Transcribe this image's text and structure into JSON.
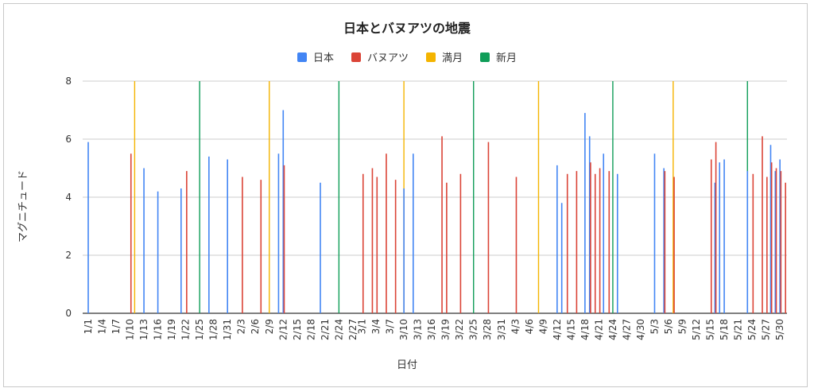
{
  "chart_data": {
    "type": "bar",
    "title": "日本とバヌアツの地震",
    "xlabel": "日付",
    "ylabel": "マグニチュード",
    "ylim": [
      0,
      8
    ],
    "yticks": [
      "0",
      "2",
      "4",
      "6",
      "8"
    ],
    "grid": true,
    "legend_position": "top",
    "xticks": [
      "1/1",
      "1/4",
      "1/7",
      "1/10",
      "1/13",
      "1/16",
      "1/19",
      "1/22",
      "1/25",
      "1/28",
      "1/31",
      "2/3",
      "2/6",
      "2/9",
      "2/12",
      "2/15",
      "2/18",
      "2/21",
      "2/24",
      "2/27",
      "3/1",
      "3/4",
      "3/7",
      "3/10",
      "3/13",
      "3/16",
      "3/19",
      "3/22",
      "3/25",
      "3/28",
      "3/31",
      "4/3",
      "4/6",
      "4/9",
      "4/12",
      "4/15",
      "4/18",
      "4/21",
      "4/24",
      "4/27",
      "4/30",
      "5/3",
      "5/6",
      "5/9",
      "5/12",
      "5/15",
      "5/18",
      "5/21",
      "5/24",
      "5/27",
      "5/30"
    ],
    "series": [
      {
        "name": "日本",
        "color": "#4285f4",
        "x": [
          "1/1",
          "1/13",
          "1/16",
          "1/21",
          "1/27",
          "1/31",
          "2/11",
          "2/12",
          "2/20",
          "3/10",
          "3/12",
          "4/12",
          "4/13",
          "4/18",
          "4/19",
          "4/22",
          "4/25",
          "5/3",
          "5/5",
          "5/16",
          "5/17",
          "5/18",
          "5/23",
          "5/28",
          "5/29",
          "5/30"
        ],
        "values": [
          5.9,
          5.0,
          4.2,
          4.3,
          5.4,
          5.3,
          5.5,
          7.0,
          4.5,
          4.3,
          5.5,
          5.1,
          3.8,
          6.9,
          6.1,
          5.5,
          4.8,
          5.5,
          5.0,
          4.5,
          5.2,
          5.3,
          4.9,
          5.8,
          4.9,
          5.3
        ]
      },
      {
        "name": "バヌアツ",
        "color": "#db4437",
        "x": [
          "1/10",
          "1/22",
          "2/3",
          "2/7",
          "2/12",
          "3/1",
          "3/3",
          "3/4",
          "3/6",
          "3/8",
          "3/18",
          "3/19",
          "3/22",
          "3/28",
          "4/3",
          "4/14",
          "4/16",
          "4/19",
          "4/20",
          "4/21",
          "4/23",
          "5/5",
          "5/7",
          "5/15",
          "5/16",
          "5/24",
          "5/26",
          "5/27",
          "5/28",
          "5/29",
          "5/30",
          "5/31"
        ],
        "values": [
          5.5,
          4.9,
          4.7,
          4.6,
          5.1,
          4.8,
          5.0,
          4.7,
          5.5,
          4.6,
          6.1,
          4.5,
          4.8,
          5.9,
          4.7,
          4.8,
          4.9,
          5.2,
          4.8,
          5.0,
          4.9,
          4.9,
          4.7,
          5.3,
          5.9,
          4.8,
          6.1,
          4.7,
          5.2,
          5.0,
          4.9,
          4.5
        ]
      },
      {
        "name": "満月",
        "color": "#f4b400",
        "x": [
          "1/11",
          "2/9",
          "3/10",
          "4/8",
          "5/7"
        ],
        "values": [
          8,
          8,
          8,
          8,
          8
        ]
      },
      {
        "name": "新月",
        "color": "#0f9d58",
        "x": [
          "1/25",
          "2/24",
          "3/25",
          "4/24",
          "5/23"
        ],
        "values": [
          8,
          8,
          8,
          8,
          8
        ]
      }
    ]
  }
}
